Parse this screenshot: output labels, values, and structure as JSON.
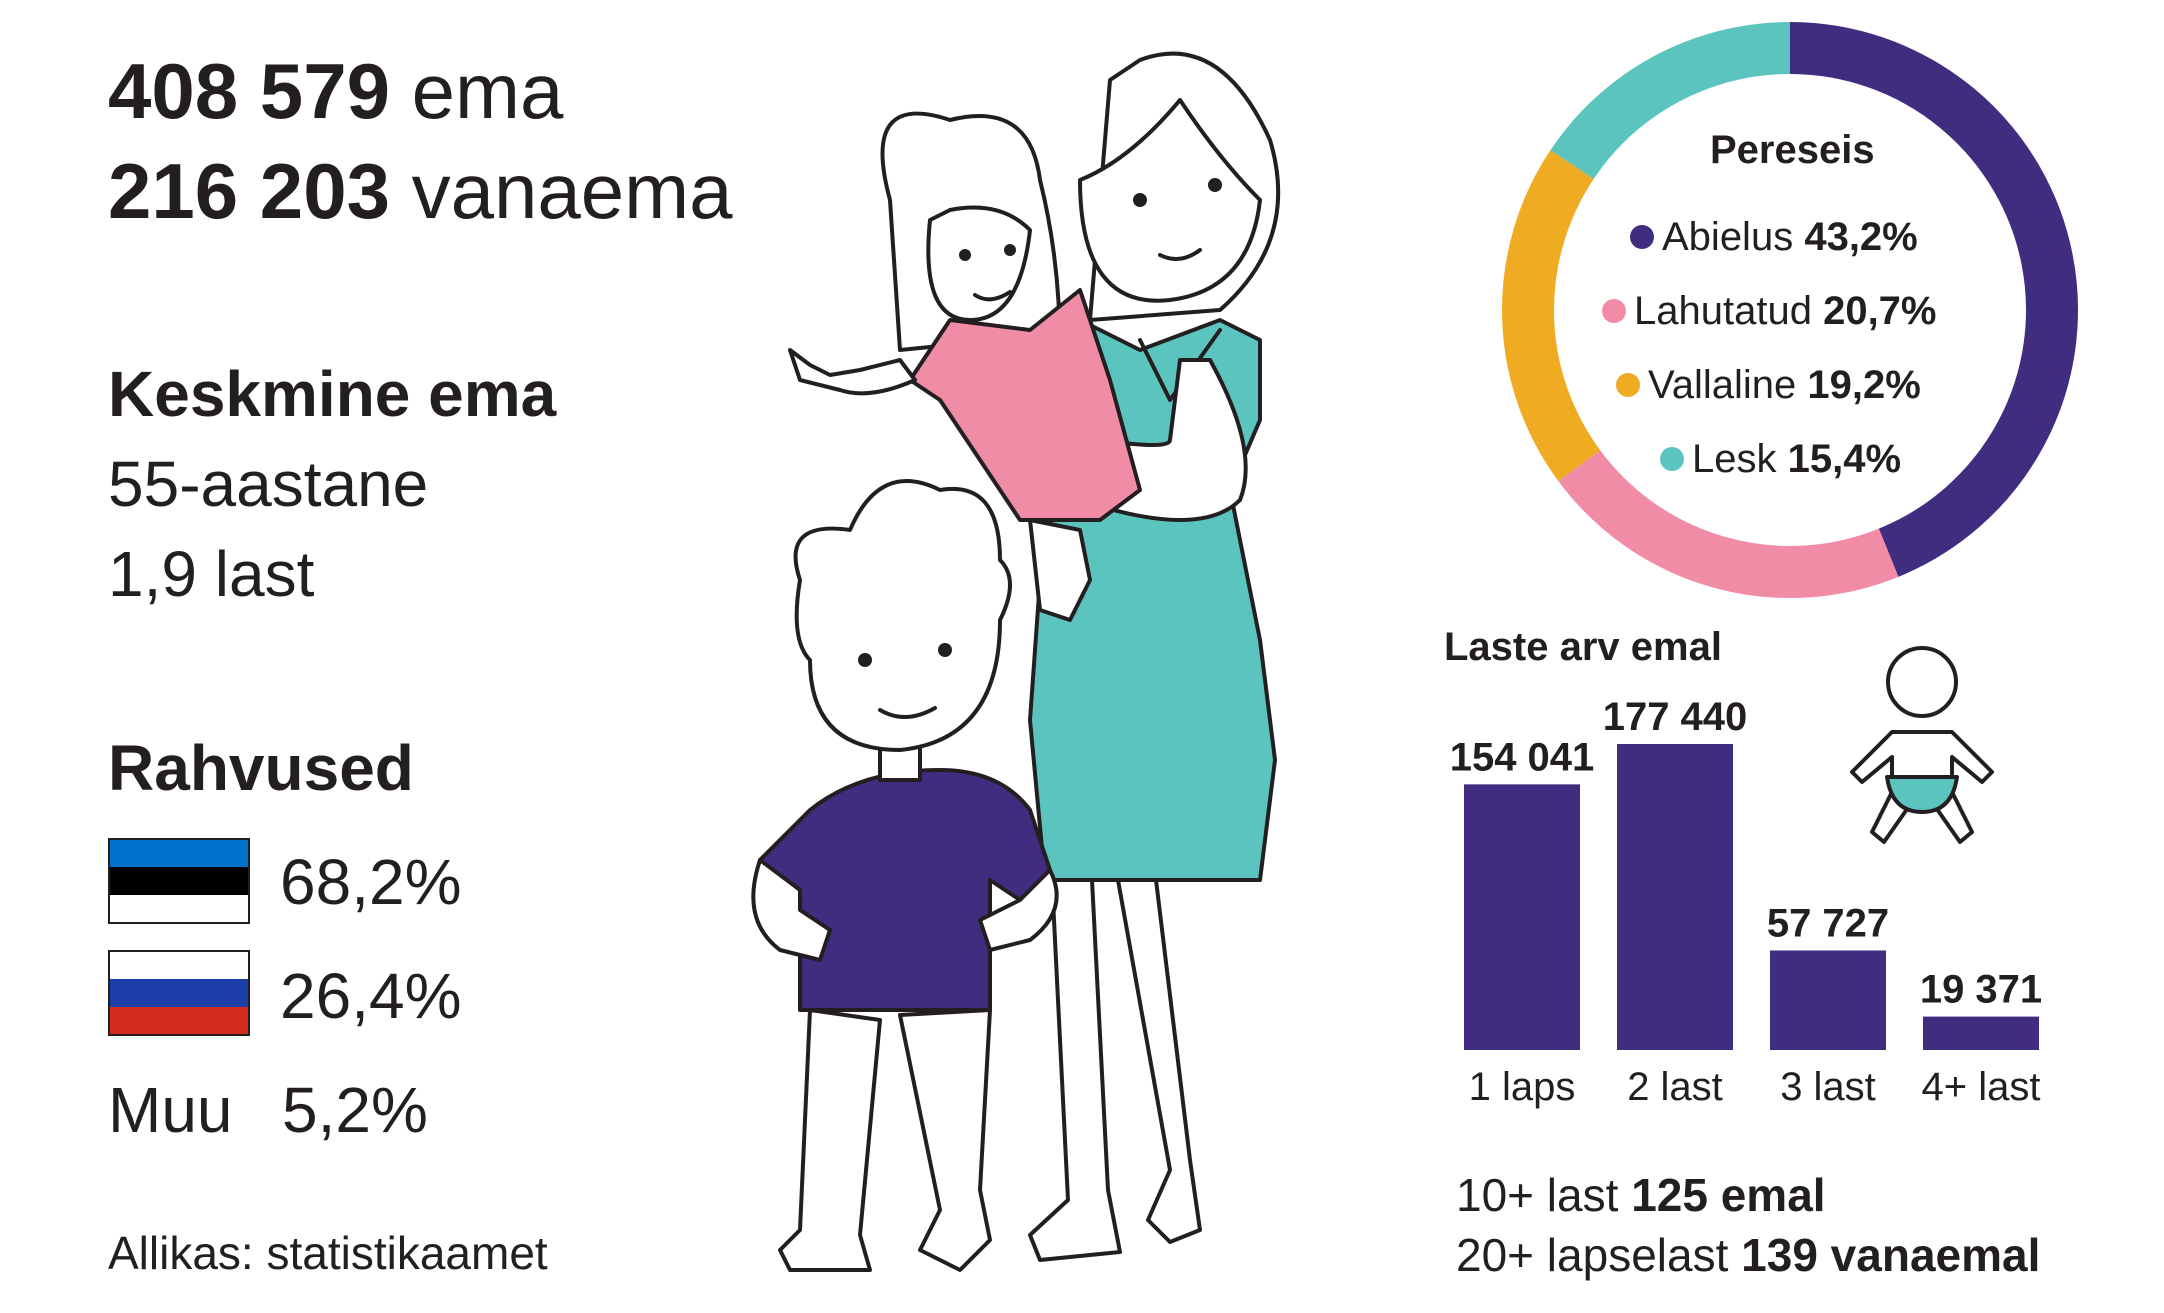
{
  "header": {
    "mothers": {
      "value": "408 579",
      "word": "ema"
    },
    "grandmothers": {
      "value": "216 203",
      "word": "vanaema"
    }
  },
  "average": {
    "title": "Keskmine ema",
    "age": "55-aastane",
    "children": "1,9 last"
  },
  "nationalities": {
    "title": "Rahvused",
    "estonian": {
      "value": "68,2%",
      "colors": [
        "#0072ce",
        "#000000",
        "#ffffff"
      ]
    },
    "russian": {
      "value": "26,4%",
      "colors": [
        "#ffffff",
        "#1c3faa",
        "#d52b1e"
      ]
    },
    "other": {
      "label": "Muu",
      "value": "5,2%"
    }
  },
  "source": "Allikas: statistikaamet",
  "chart_data": [
    {
      "type": "pie",
      "title": "Pereseis",
      "donut": true,
      "slices": [
        {
          "label": "Abielus",
          "value_text": "43,2%",
          "value": 43.2,
          "color": "#402d80"
        },
        {
          "label": "Lahutatud",
          "value_text": "20,7%",
          "value": 20.7,
          "color": "#f18ca6"
        },
        {
          "label": "Vallaline",
          "value_text": "19,2%",
          "value": 19.2,
          "color": "#efac23"
        },
        {
          "label": "Lesk",
          "value_text": "15,4%",
          "value": 15.4,
          "color": "#5bc4bf"
        }
      ]
    },
    {
      "type": "bar",
      "title": "Laste arv emal",
      "categories": [
        "1 laps",
        "2 last",
        "3 last",
        "4+ last"
      ],
      "values": [
        154041,
        177440,
        57727,
        19371
      ],
      "value_labels": [
        "154 041",
        "177 440",
        "57 727",
        "19 371"
      ],
      "color": "#402d80"
    }
  ],
  "footnotes": {
    "line1": {
      "prefix": "10+ last",
      "bold": "125 emal"
    },
    "line2": {
      "prefix": "20+ lapselast",
      "bold": "139 vanaemal"
    }
  },
  "colors": {
    "purple": "#402d80",
    "teal": "#5bc4bf",
    "pink": "#f18ca6",
    "yellow": "#efac23",
    "text": "#231f20"
  }
}
